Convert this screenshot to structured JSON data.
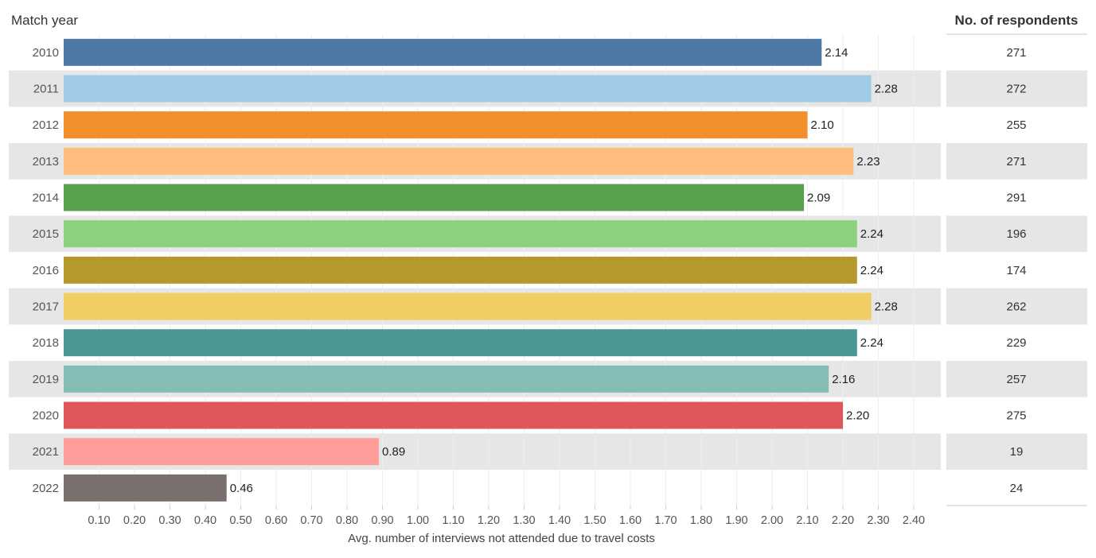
{
  "chart_data": {
    "type": "bar",
    "orientation": "horizontal",
    "row_header": "Match year",
    "side_column_header": "No. of respondents",
    "xlabel": "Avg. number of interviews not attended due to travel costs",
    "xlim": [
      0,
      2.46
    ],
    "xticks": [
      "0.10",
      "0.20",
      "0.30",
      "0.40",
      "0.50",
      "0.60",
      "0.70",
      "0.80",
      "0.90",
      "1.00",
      "1.10",
      "1.20",
      "1.30",
      "1.40",
      "1.50",
      "1.60",
      "1.70",
      "1.80",
      "1.90",
      "2.00",
      "2.10",
      "2.20",
      "2.30",
      "2.40"
    ],
    "grid": true,
    "categories": [
      "2010",
      "2011",
      "2012",
      "2013",
      "2014",
      "2015",
      "2016",
      "2017",
      "2018",
      "2019",
      "2020",
      "2021",
      "2022"
    ],
    "values": [
      2.14,
      2.28,
      2.1,
      2.23,
      2.09,
      2.24,
      2.24,
      2.28,
      2.24,
      2.16,
      2.2,
      0.89,
      0.46
    ],
    "value_labels": [
      "2.14",
      "2.28",
      "2.10",
      "2.23",
      "2.09",
      "2.24",
      "2.24",
      "2.28",
      "2.24",
      "2.16",
      "2.20",
      "0.89",
      "0.46"
    ],
    "respondents": [
      "271",
      "272",
      "255",
      "271",
      "291",
      "196",
      "174",
      "262",
      "229",
      "257",
      "275",
      "19",
      "24"
    ],
    "colors": [
      "#4e79a7",
      "#a0cbe8",
      "#f28e2b",
      "#ffbe7d",
      "#59a14f",
      "#8cd17d",
      "#b6992d",
      "#f1ce63",
      "#499894",
      "#86bcb6",
      "#e15759",
      "#ff9d9a",
      "#79706e"
    ],
    "band_color": "#e6e6e6"
  }
}
